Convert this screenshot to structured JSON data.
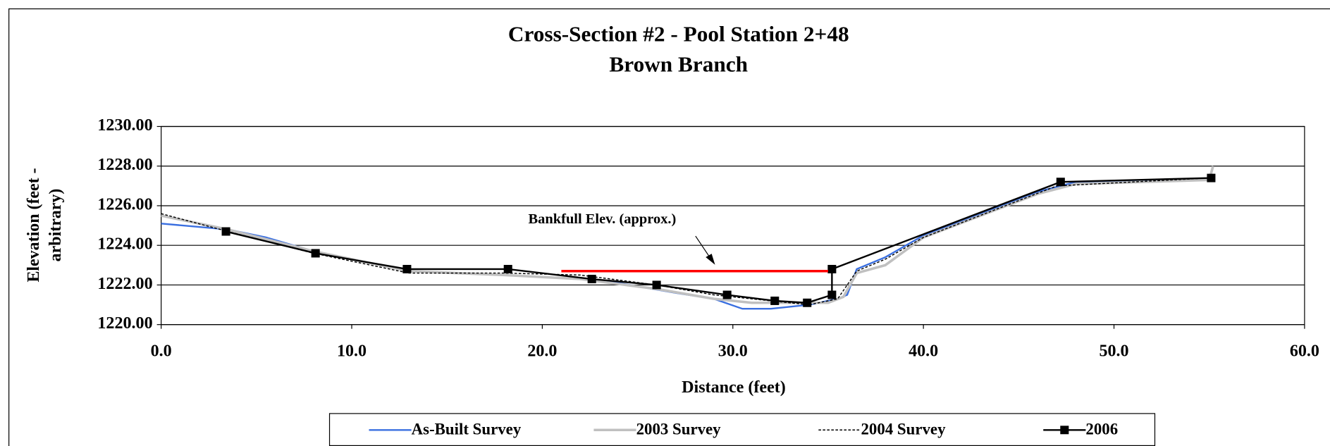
{
  "chart_data": {
    "type": "line",
    "title": "Cross-Section #2 - Pool Station 2+48",
    "subtitle": "Brown Branch",
    "x_label": "Distance (feet)",
    "y_label": [
      "Elevation (feet -",
      "arbitrary)"
    ],
    "xlim": [
      0,
      60
    ],
    "xticks": [
      {
        "value": 0,
        "label": "0.0"
      },
      {
        "value": 10,
        "label": "10.0"
      },
      {
        "value": 20,
        "label": "20.0"
      },
      {
        "value": 30,
        "label": "30.0"
      },
      {
        "value": 40,
        "label": "40.0"
      },
      {
        "value": 50,
        "label": "50.0"
      },
      {
        "value": 60,
        "label": "60.0"
      }
    ],
    "ylim": [
      1220,
      1230
    ],
    "yticks": [
      {
        "value": 1220,
        "label": "1220.00"
      },
      {
        "value": 1222,
        "label": "1222.00"
      },
      {
        "value": 1224,
        "label": "1224.00"
      },
      {
        "value": 1226,
        "label": "1226.00"
      },
      {
        "value": 1228,
        "label": "1228.00"
      },
      {
        "value": 1230,
        "label": "1230.00"
      }
    ],
    "grid": true,
    "legend": "bottom",
    "series": [
      {
        "name": "As-Built Survey",
        "color": "#3a6fe0",
        "style": "solid",
        "x": [
          0,
          3.5,
          5.5,
          8,
          13,
          18,
          22,
          24,
          27,
          29,
          30.5,
          32,
          34,
          35.5,
          36,
          36.5,
          38,
          40,
          42,
          46,
          48,
          50,
          55
        ],
        "values": [
          1225.1,
          1224.8,
          1224.4,
          1223.7,
          1222.7,
          1222.5,
          1222.3,
          1222.1,
          1221.6,
          1221.3,
          1220.8,
          1220.8,
          1221.0,
          1221.3,
          1221.5,
          1222.8,
          1223.4,
          1224.5,
          1225.2,
          1226.7,
          1227.2,
          1227.2,
          1227.3
        ]
      },
      {
        "name": "2003 Survey",
        "color": "#c0c0c0",
        "style": "thick",
        "x": [
          0,
          3.5,
          8,
          13,
          18,
          22,
          26,
          29,
          31,
          33,
          35,
          35.8,
          36.5,
          38,
          40,
          46,
          48,
          55,
          55.2
        ],
        "values": [
          1225.5,
          1224.8,
          1223.7,
          1222.7,
          1222.5,
          1222.3,
          1221.8,
          1221.3,
          1221.1,
          1221.1,
          1221.1,
          1221.4,
          1222.6,
          1223.0,
          1224.4,
          1226.6,
          1227.1,
          1227.3,
          1228.0
        ]
      },
      {
        "name": "2004 Survey",
        "color": "#000000",
        "style": "dotted",
        "x": [
          0,
          3.5,
          8,
          13,
          18,
          22,
          26,
          29,
          32,
          34,
          35.5,
          36.5,
          38,
          40,
          47,
          55
        ],
        "values": [
          1225.6,
          1224.7,
          1223.6,
          1222.6,
          1222.6,
          1222.5,
          1222.0,
          1221.5,
          1221.2,
          1221.0,
          1221.3,
          1222.7,
          1223.3,
          1224.4,
          1227.0,
          1227.4
        ]
      },
      {
        "name": "2006",
        "color": "#000000",
        "style": "marker",
        "x": [
          3.4,
          8.1,
          12.9,
          18.2,
          22.6,
          26.0,
          29.7,
          32.2,
          33.9,
          35.2,
          35.2,
          47.2,
          55.1
        ],
        "values": [
          1224.7,
          1223.6,
          1222.8,
          1222.8,
          1222.3,
          1222.0,
          1221.5,
          1221.2,
          1221.1,
          1221.5,
          1222.8,
          1227.2,
          1227.4
        ]
      }
    ],
    "reference_line": {
      "x": [
        21,
        35
      ],
      "value": 1222.7,
      "color": "#ff0000"
    },
    "annotation": "Bankfull Elev. (approx.)"
  }
}
